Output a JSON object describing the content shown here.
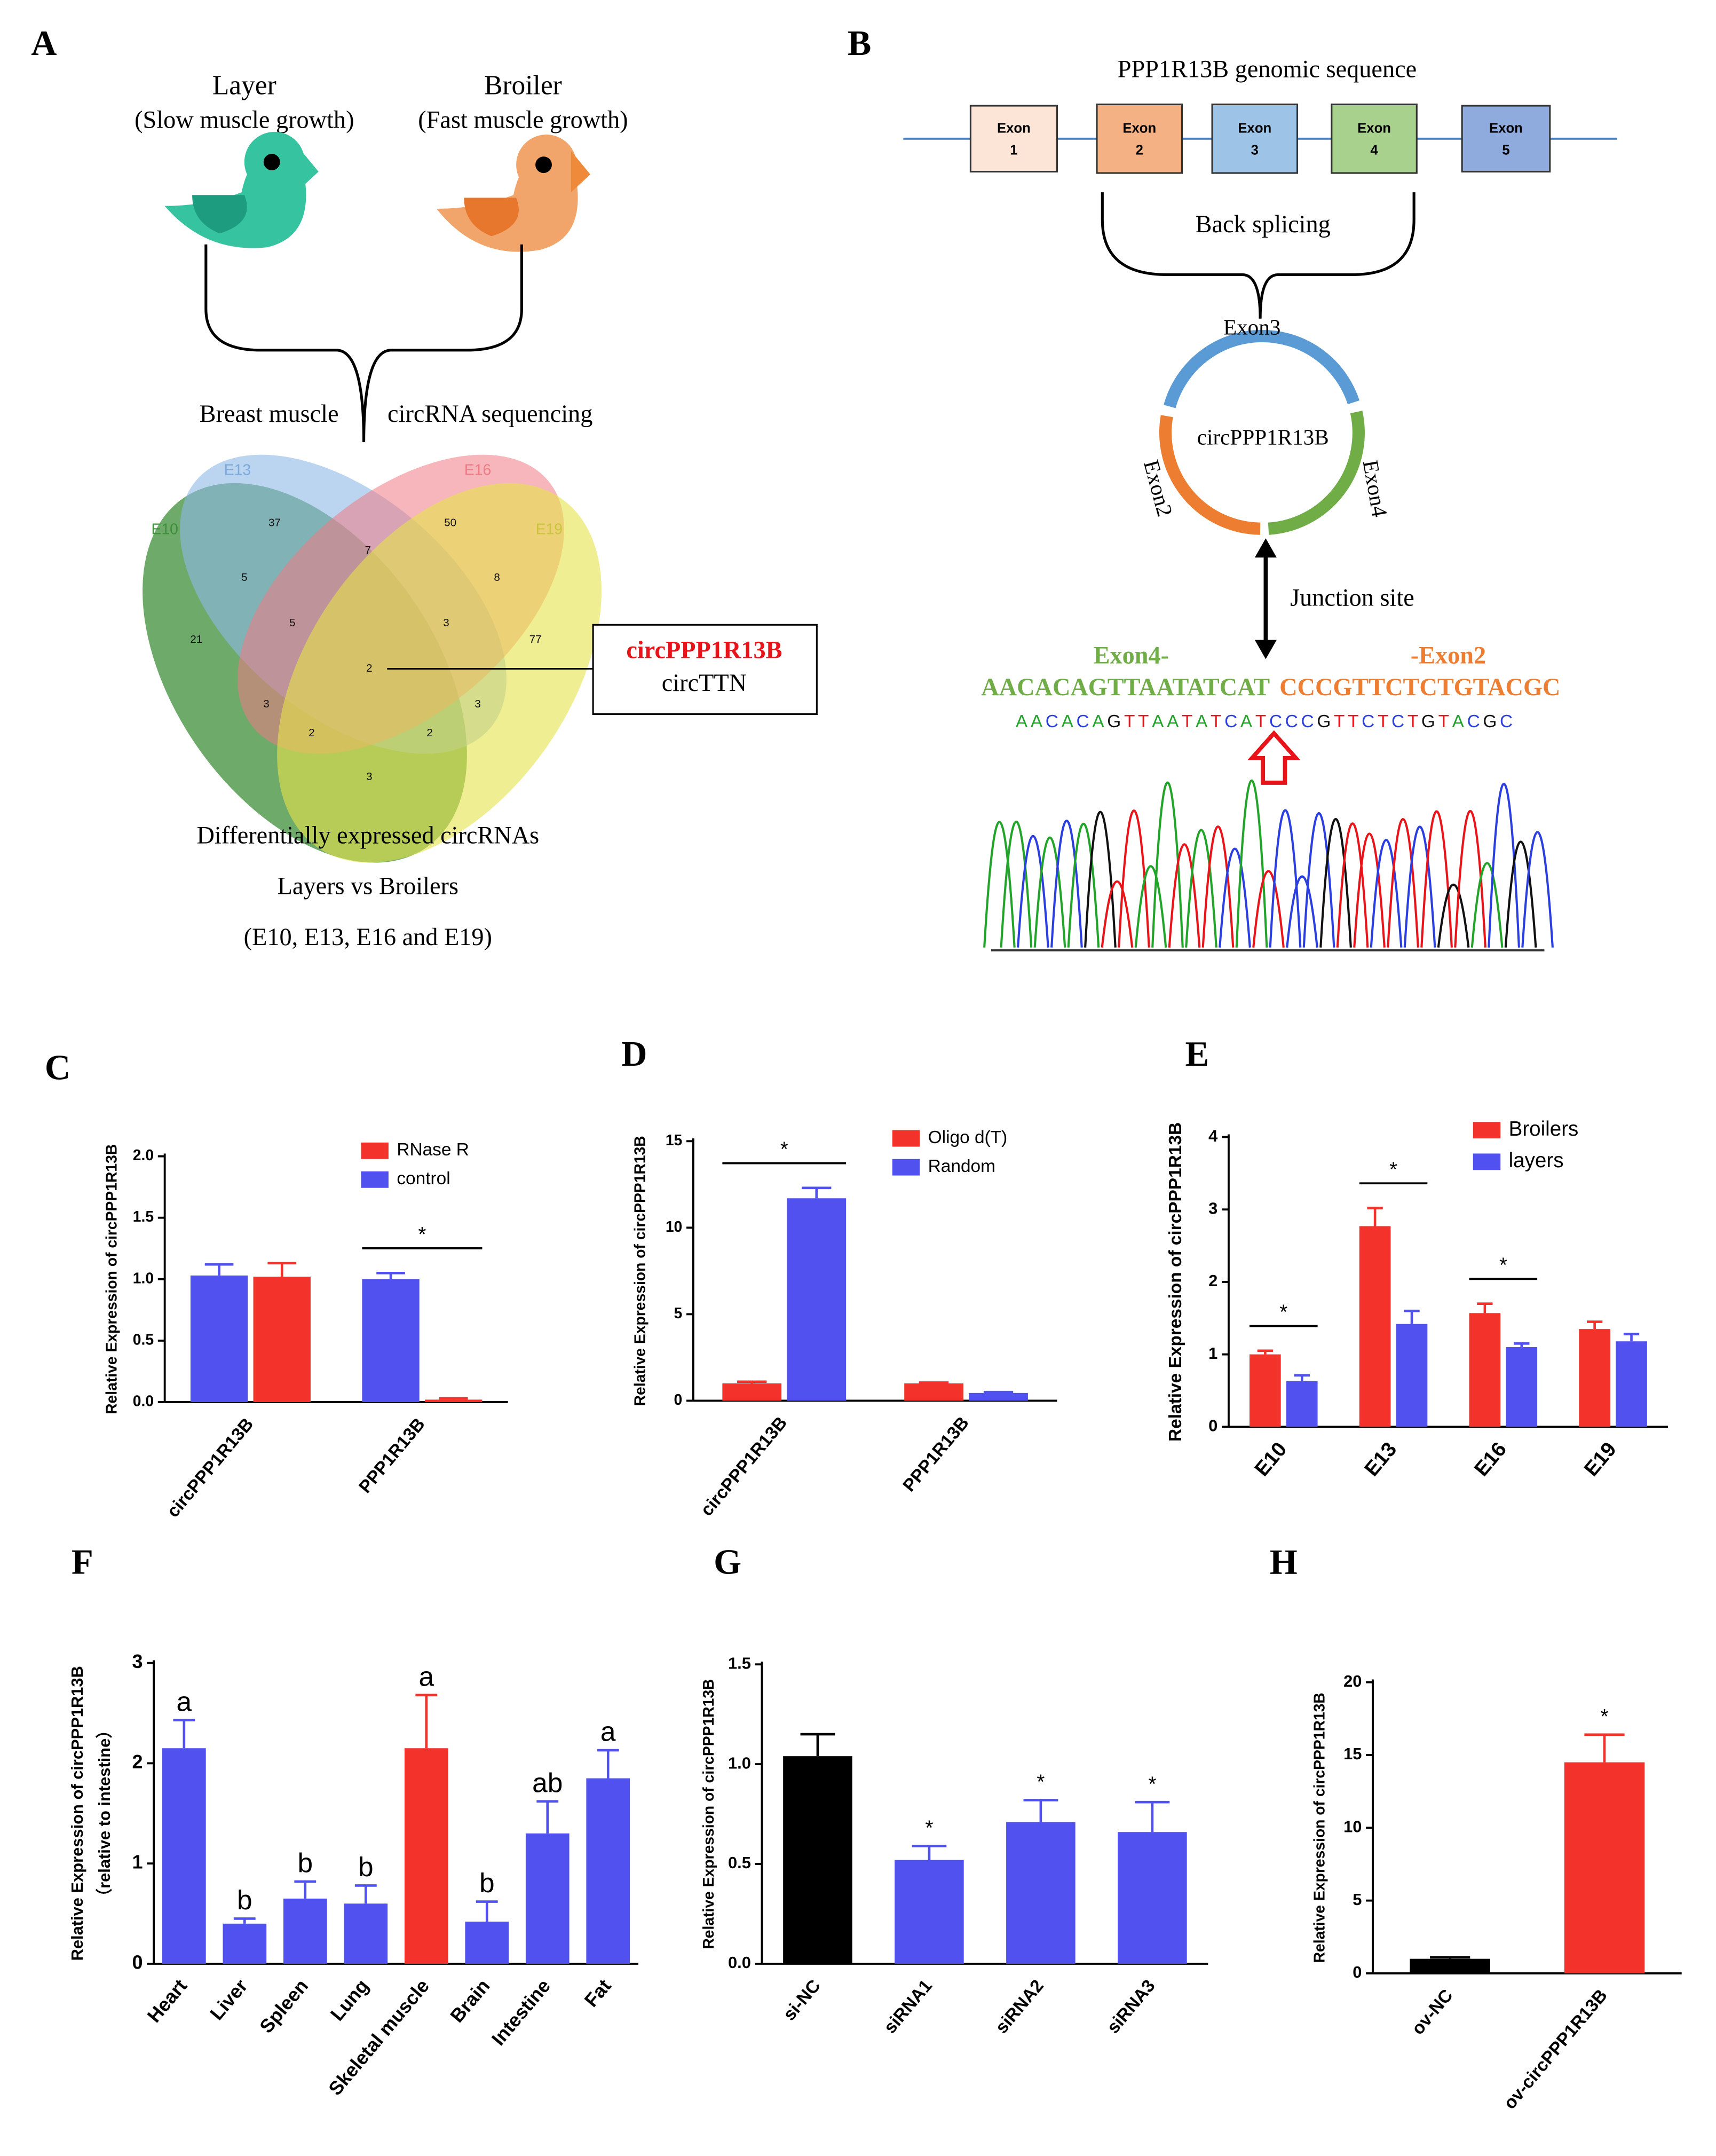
{
  "panel_a": {
    "label": "A",
    "layer": {
      "name": "Layer",
      "note": "(Slow muscle growth)"
    },
    "broiler": {
      "name": "Broiler",
      "note": "(Fast muscle growth)"
    },
    "tissue": "Breast muscle",
    "method": "circRNA sequencing",
    "venn": {
      "sets": [
        "E10",
        "E13",
        "E16",
        "E19"
      ],
      "counts": [
        37,
        50,
        7,
        5,
        8,
        21,
        5,
        3,
        77,
        2,
        3,
        3,
        2,
        2,
        3
      ]
    },
    "callout": [
      "circPPP1R13B",
      "circTTN"
    ],
    "caption": [
      "Differentially expressed circRNAs",
      "Layers vs Broilers",
      "(E10, E13, E16 and E19)"
    ]
  },
  "panel_b": {
    "label": "B",
    "title": "PPP1R13B genomic sequence",
    "exons": [
      {
        "name": "Exon",
        "number": 1
      },
      {
        "name": "Exon",
        "number": 2
      },
      {
        "name": "Exon",
        "number": 3
      },
      {
        "name": "Exon",
        "number": 4
      },
      {
        "name": "Exon",
        "number": 5
      }
    ],
    "splice": "Back splicing",
    "circle": {
      "name": "circPPP1R13B",
      "exons": [
        "Exon3",
        "Exon2",
        "Exon4"
      ]
    },
    "junction": "Junction site",
    "junction_exons": [
      "Exon4-",
      "-Exon2"
    ],
    "junction_seq": [
      "AACACAGTTAATATCAT",
      "CCCGTTCTCTGTACGC"
    ],
    "read": "AACACAGTTAATATCATCCCGTTCTCTGTACGC"
  },
  "chart_data": [
    {
      "type": "bar",
      "panel": "C",
      "y_label": "Relative Expression of circPPP1R13B",
      "categories": [
        "circPPP1R13B",
        "PPP1R13B"
      ],
      "series": [
        {
          "name": "RNase R",
          "color": "#f2322b",
          "values": [
            1.02,
            0.02
          ],
          "errors": [
            0.11,
            0.01
          ]
        },
        {
          "name": "control",
          "color": "#5151f0",
          "values": [
            1.03,
            1.0
          ],
          "errors": [
            0.09,
            0.05
          ]
        }
      ],
      "significance": [
        null,
        "*"
      ],
      "legend": "upper right",
      "ylim": [
        0,
        2.0
      ],
      "yticks": [
        {
          "value": 0,
          "label": "0.0"
        },
        {
          "value": 0.5,
          "label": "0.5"
        },
        {
          "value": 1.0,
          "label": "1.0"
        },
        {
          "value": 1.5,
          "label": "1.5"
        },
        {
          "value": 2.0,
          "label": "2.0"
        }
      ]
    },
    {
      "type": "bar",
      "panel": "D",
      "y_label": "Relative Expression of circPPP1R13B",
      "categories": [
        "circPPP1R13B",
        "PPP1R13B"
      ],
      "series": [
        {
          "name": "Oligo d(T)",
          "color": "#f2322b",
          "values": [
            1.0,
            1.0
          ],
          "errors": [
            0.1,
            0.05
          ]
        },
        {
          "name": "Random",
          "color": "#5151f0",
          "values": [
            11.7,
            0.45
          ],
          "errors": [
            0.6,
            0.05
          ]
        }
      ],
      "significance": [
        "*",
        null
      ],
      "legend": "upper right",
      "ylim": [
        0,
        15
      ],
      "yticks": [
        0,
        5,
        10,
        15
      ]
    },
    {
      "type": "bar",
      "panel": "E",
      "y_label": "Relative Expression of circPPP1R13B",
      "categories": [
        "E10",
        "E13",
        "E16",
        "E19"
      ],
      "series": [
        {
          "name": "Broilers",
          "color": "#f2322b",
          "values": [
            1.0,
            2.77,
            1.57,
            1.35
          ],
          "errors": [
            0.05,
            0.25,
            0.13,
            0.1
          ]
        },
        {
          "name": "layers",
          "color": "#5151f0",
          "values": [
            0.63,
            1.42,
            1.1,
            1.18
          ],
          "errors": [
            0.08,
            0.18,
            0.05,
            0.1
          ]
        }
      ],
      "significance": [
        "*",
        "*",
        "*",
        null
      ],
      "legend": "upper right",
      "ylim": [
        0,
        4
      ],
      "yticks": [
        0,
        1,
        2,
        3,
        4
      ]
    },
    {
      "type": "bar",
      "panel": "F",
      "y_label": "Relative Expression of circPPP1R13B",
      "y_sublabel": "（relative to intestine）",
      "categories": [
        "Heart",
        "Liver",
        "Spleen",
        "Lung",
        "Skeletal muscle",
        "Brain",
        "Intestine",
        "Fat"
      ],
      "values": [
        2.15,
        0.4,
        0.65,
        0.6,
        2.15,
        0.42,
        1.3,
        1.85
      ],
      "errors": [
        0.28,
        0.05,
        0.17,
        0.18,
        0.53,
        0.2,
        0.32,
        0.28
      ],
      "colors": [
        "#5151f0",
        "#5151f0",
        "#5151f0",
        "#5151f0",
        "#f2322b",
        "#5151f0",
        "#5151f0",
        "#5151f0"
      ],
      "significance": [
        "a",
        "b",
        "b",
        "b",
        "a",
        "b",
        "ab",
        "a"
      ],
      "ylim": [
        0,
        3
      ],
      "yticks": [
        0,
        1,
        2,
        3
      ]
    },
    {
      "type": "bar",
      "panel": "G",
      "y_label": "Relative Expression of circPPP1R13B",
      "categories": [
        "si-NC",
        "siRNA1",
        "siRNA2",
        "siRNA3"
      ],
      "values": [
        1.04,
        0.52,
        0.71,
        0.66
      ],
      "errors": [
        0.11,
        0.07,
        0.11,
        0.15
      ],
      "colors": [
        "#000000",
        "#5151f0",
        "#5151f0",
        "#5151f0"
      ],
      "significance": [
        null,
        "*",
        "*",
        "*"
      ],
      "ylim": [
        0,
        1.5
      ],
      "yticks": [
        {
          "value": 0,
          "label": "0.0"
        },
        {
          "value": 0.5,
          "label": "0.5"
        },
        {
          "value": 1.0,
          "label": "1.0"
        },
        {
          "value": 1.5,
          "label": "1.5"
        }
      ]
    },
    {
      "type": "bar",
      "panel": "H",
      "y_label": "Relative Expression of circPPP1R13B",
      "categories": [
        "ov-NC",
        "ov-circPPP1R13B"
      ],
      "values": [
        1.0,
        14.5
      ],
      "errors": [
        0.1,
        1.9
      ],
      "colors": [
        "#000000",
        "#f2322b"
      ],
      "significance": [
        null,
        "*"
      ],
      "ylim": [
        0,
        20
      ],
      "yticks": [
        0,
        5,
        10,
        15,
        20
      ]
    }
  ]
}
